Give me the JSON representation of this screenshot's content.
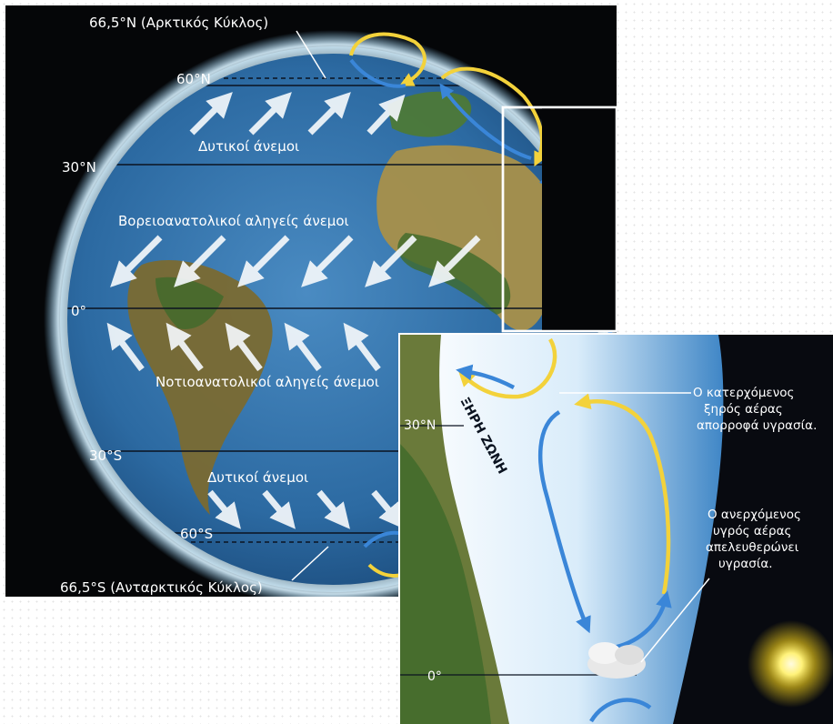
{
  "main": {
    "lat_labels": {
      "arctic": "66,5°N (Αρκτικός Κύκλος)",
      "n60": "60°N",
      "n30": "30°N",
      "eq": "0°",
      "s30": "30°S",
      "s60": "60°S",
      "antarctic": "66,5°S (Ανταρκτικός Κύκλος)"
    },
    "winds": {
      "westerlies_north": "Δυτικοί άνεμοι",
      "ne_trades": "Βορειοανατολικοί αληγείς άνεμοι",
      "se_trades": "Νοτιοανατολικοί αληγείς άνεμοι",
      "westerlies_south": "Δυτικοί άνεμοι"
    }
  },
  "inset": {
    "n30": "30°N",
    "eq": "0°",
    "dry_zone": "ΞΗΡΗ ΖΩΝΗ",
    "descending": [
      "Ο κατερχόμενος",
      "ξηρός αέρας",
      "απορροφά υγρασία."
    ],
    "rising": [
      "Ο ανερχόμενος",
      "υγρός αέρας",
      "απελευθερώνει",
      "υγρασία."
    ]
  },
  "colors": {
    "ocean": "#2f6fa8",
    "land": "#8a7a3a",
    "warm_arrow": "#f3d23b",
    "cool_arrow": "#3a86d8"
  }
}
